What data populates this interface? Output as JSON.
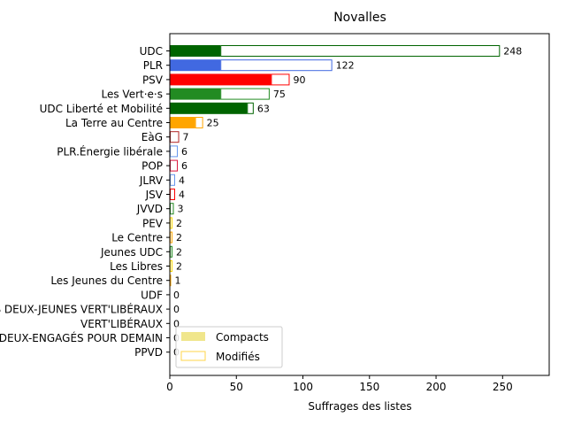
{
  "chart_data": {
    "type": "bar",
    "orientation": "horizontal",
    "title": "Novalles",
    "xlabel": "Suffrages des listes",
    "ylabel": "",
    "xlim": [
      0,
      285
    ],
    "xticks": [
      0,
      50,
      100,
      150,
      200,
      250
    ],
    "grid": false,
    "legend": {
      "placement": "lower-left",
      "entries": [
        "Compacts",
        "Modifiés"
      ],
      "colors": [
        "#f0e68c",
        "#ffd54a"
      ]
    },
    "categories": [
      "UDC",
      "PLR",
      "PSV",
      "Les Vert·e·s",
      "UDC Liberté et Mobilité",
      "La Terre au Centre",
      "EàG",
      "PLR.Énergie libérale",
      "POP",
      "JLRV",
      "JSV",
      "JVVD",
      "PEV",
      "Le Centre",
      "Jeunes UDC",
      "Les Libres",
      "Les Jeunes du Centre",
      "UDF",
      "LES DEUX-JEUNES VERT'LIBÉRAUX",
      "VERT'LIBÉRAUX",
      "LES DEUX-ENGAGÉS POUR DEMAIN",
      "PPVD"
    ],
    "series": [
      {
        "name": "Compacts",
        "values": [
          38,
          38,
          76,
          38,
          58,
          19,
          0,
          0,
          0,
          0,
          0,
          0,
          0,
          0,
          0,
          0,
          0,
          0,
          0,
          0,
          0,
          0
        ]
      },
      {
        "name": "Modifiés",
        "values": [
          210,
          84,
          14,
          37,
          5,
          6,
          7,
          6,
          6,
          4,
          4,
          3,
          2,
          2,
          2,
          2,
          1,
          0,
          0,
          0,
          0,
          0
        ]
      }
    ],
    "totals": [
      "248",
      "122",
      "90",
      "75",
      "63",
      "25",
      "7",
      "6",
      "6",
      "4",
      "4",
      "3",
      "2",
      "2",
      "2",
      "2",
      "1",
      "0",
      "0",
      "0",
      "0",
      "0"
    ],
    "bar_colors": [
      "#006400",
      "#4169e1",
      "#ff0000",
      "#228b22",
      "#006400",
      "#ffa500",
      "#b22222",
      "#6495ed",
      "#dc143c",
      "#6495ed",
      "#ff0000",
      "#228b22",
      "#ffd700",
      "#ffa500",
      "#228b22",
      "#ffd700",
      "#ffa500",
      "#888888",
      "#888888",
      "#888888",
      "#888888",
      "#888888"
    ]
  }
}
